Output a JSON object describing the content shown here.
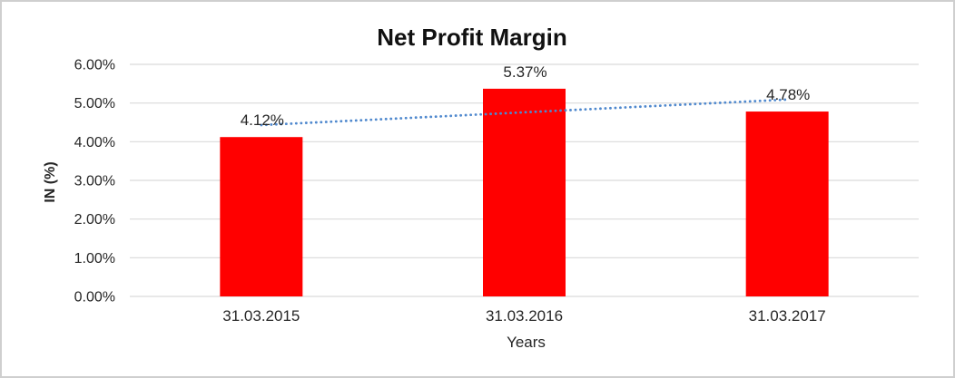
{
  "chart_data": {
    "type": "bar",
    "title": "Net Profit Margin",
    "xlabel": "Years",
    "ylabel": "IN (%)",
    "categories": [
      "31.03.2015",
      "31.03.2016",
      "31.03.2017"
    ],
    "values": [
      4.12,
      5.37,
      4.78
    ],
    "data_labels": [
      "4.12%",
      "5.37%",
      "4.78%"
    ],
    "ylim": [
      0,
      6
    ],
    "ytick_step": 1,
    "ytick_labels": [
      "0.00%",
      "1.00%",
      "2.00%",
      "3.00%",
      "4.00%",
      "5.00%",
      "6.00%"
    ],
    "grid": true,
    "legend": false,
    "trendline": {
      "type": "linear",
      "style": "dotted",
      "start_value": 4.43,
      "end_value": 5.09
    }
  },
  "colors": {
    "bar": "#ff0000",
    "trendline": "#5089ce",
    "gridline": "#d9d9d9",
    "tick_text": "#262626",
    "title_text": "#111111",
    "border": "#cfcfcf"
  }
}
